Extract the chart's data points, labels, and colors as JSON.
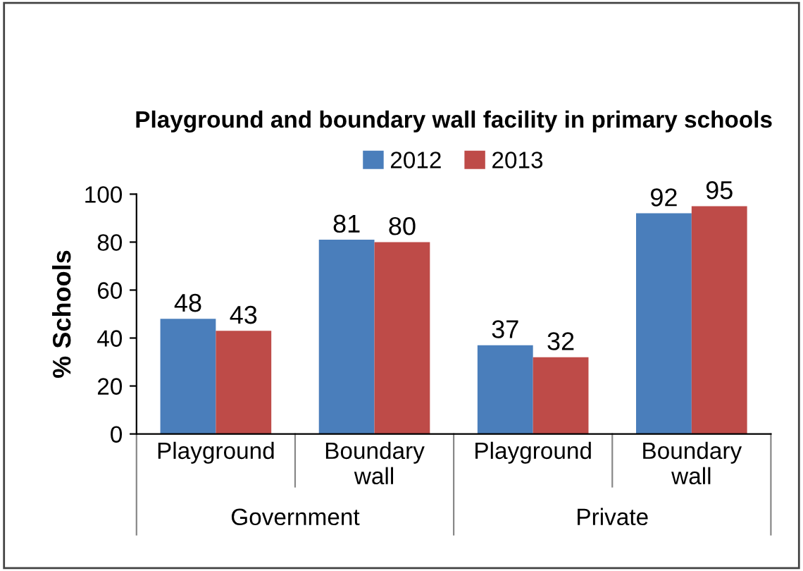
{
  "chart_data": {
    "type": "bar",
    "title": "Playground and boundary wall facility in primary schools",
    "ylabel": "% Schools",
    "categories": [
      "Playground",
      "Boundary\nwall",
      "Playground",
      "Boundary\nwall"
    ],
    "series": [
      {
        "name": "2012",
        "color": "#4a7ebb",
        "values": [
          48,
          81,
          37,
          92
        ]
      },
      {
        "name": "2013",
        "color": "#be4b48",
        "values": [
          43,
          80,
          32,
          95
        ]
      }
    ],
    "annotations": [
      "Government",
      "Private"
    ],
    "ylim": [
      0,
      100
    ],
    "yticks": [
      0,
      20,
      40,
      60,
      80,
      100
    ],
    "data_labels": true,
    "legend": "top",
    "grid": false
  }
}
